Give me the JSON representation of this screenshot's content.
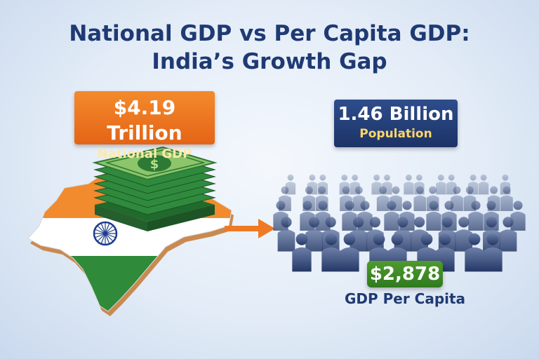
{
  "title": {
    "line1": "National GDP vs Per Capita GDP:",
    "line2": "India’s Growth Gap"
  },
  "national_gdp": {
    "value": "$4.19 Trillion",
    "label": "National GDP"
  },
  "population": {
    "value": "1.46 Billion",
    "label": "Population"
  },
  "per_capita": {
    "value": "$2,878",
    "label": "GDP Per Capita"
  },
  "colors": {
    "title": "#1f3a73",
    "gdp_badge": "#ec7420",
    "population_badge": "#243f78",
    "per_capita_badge": "#3f8a26",
    "flag_saffron": "#f28a2e",
    "flag_green": "#2f8a3a",
    "chakra": "#1d3c8a",
    "money": "#2f8a3e",
    "arrow": "#ef7a24"
  },
  "icons": {
    "map": "india-map-icon",
    "money": "money-stack-icon",
    "crowd": "crowd-icon",
    "arrow": "arrow-right-icon"
  }
}
